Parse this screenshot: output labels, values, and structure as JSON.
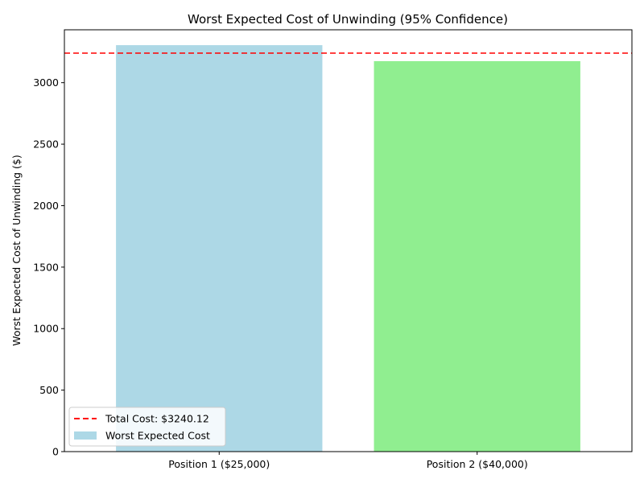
{
  "chart_data": {
    "type": "bar",
    "title": "Worst Expected Cost of Unwinding (95% Confidence)",
    "xlabel": "",
    "ylabel": "Worst Expected Cost of Unwinding ($)",
    "categories": [
      "Position 1 ($25,000)",
      "Position 2 ($40,000)"
    ],
    "values": [
      3305,
      3175
    ],
    "bar_colors": [
      "#add8e6",
      "#90ee90"
    ],
    "ylim": [
      0,
      3430
    ],
    "yticks": [
      0,
      500,
      1000,
      1500,
      2000,
      2500,
      3000
    ],
    "reference_line": {
      "value": 3240.12,
      "color": "#ff0000",
      "style": "dashed",
      "label": "Total Cost: $3240.12"
    },
    "legend": {
      "position": "lower-left",
      "entries": [
        {
          "label": "Total Cost: $3240.12",
          "kind": "line",
          "color": "#ff0000"
        },
        {
          "label": "Worst Expected Cost",
          "kind": "patch",
          "color": "#add8e6"
        }
      ]
    },
    "grid": false
  }
}
